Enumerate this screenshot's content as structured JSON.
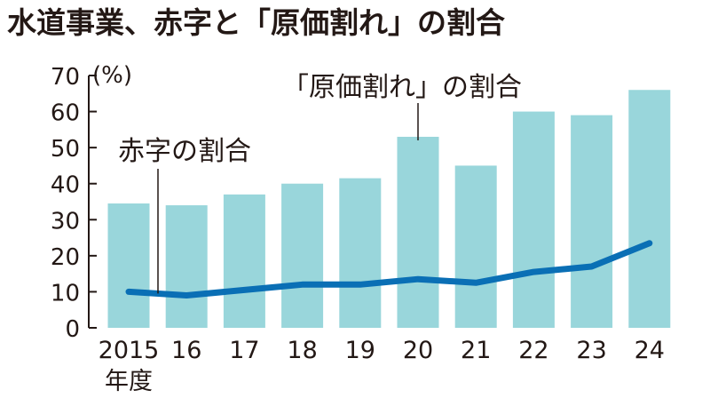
{
  "chart_data": {
    "type": "bar+line",
    "title": "水道事業、赤字と「原価割れ」の割合",
    "ylabel": "(%)",
    "xlabel": "年度",
    "ylim": [
      0,
      70
    ],
    "yticks": [
      0,
      10,
      20,
      30,
      40,
      50,
      60,
      70
    ],
    "categories": [
      "2015",
      "16",
      "17",
      "18",
      "19",
      "20",
      "21",
      "22",
      "23",
      "24"
    ],
    "series": [
      {
        "name": "「原価割れ」の割合",
        "type": "bar",
        "color": "#99d6db",
        "values": [
          34.5,
          34,
          37,
          40,
          41.5,
          53,
          45,
          60,
          59,
          66
        ]
      },
      {
        "name": "赤字の割合",
        "type": "line",
        "color": "#0a6fb5",
        "values": [
          10,
          9,
          10.5,
          12,
          12,
          13.5,
          12.5,
          15.5,
          17,
          23.5
        ]
      }
    ],
    "grid": false,
    "legend": "inline-callouts"
  }
}
